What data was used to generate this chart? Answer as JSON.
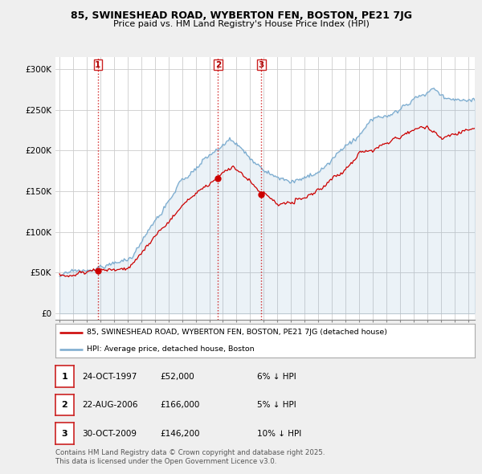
{
  "title_line1": "85, SWINESHEAD ROAD, WYBERTON FEN, BOSTON, PE21 7JG",
  "title_line2": "Price paid vs. HM Land Registry's House Price Index (HPI)",
  "xlim_start": 1994.7,
  "xlim_end": 2025.5,
  "ylim_min": -8000,
  "ylim_max": 315000,
  "yticks": [
    0,
    50000,
    100000,
    150000,
    200000,
    250000,
    300000
  ],
  "ytick_labels": [
    "£0",
    "£50K",
    "£100K",
    "£150K",
    "£200K",
    "£250K",
    "£300K"
  ],
  "sale_dates_decimal": [
    1997.81,
    2006.64,
    2009.83
  ],
  "sale_prices": [
    52000,
    166000,
    146200
  ],
  "sale_labels": [
    "1",
    "2",
    "3"
  ],
  "legend_red_label": "85, SWINESHEAD ROAD, WYBERTON FEN, BOSTON, PE21 7JG (detached house)",
  "legend_blue_label": "HPI: Average price, detached house, Boston",
  "table_rows": [
    [
      "1",
      "24-OCT-1997",
      "£52,000",
      "6% ↓ HPI"
    ],
    [
      "2",
      "22-AUG-2006",
      "£166,000",
      "5% ↓ HPI"
    ],
    [
      "3",
      "30-OCT-2009",
      "£146,200",
      "10% ↓ HPI"
    ]
  ],
  "footer_text": "Contains HM Land Registry data © Crown copyright and database right 2025.\nThis data is licensed under the Open Government Licence v3.0.",
  "bg_color": "#efefef",
  "plot_bg_color": "#ffffff",
  "red_color": "#cc0000",
  "blue_color": "#7aabcf",
  "grid_color": "#cccccc"
}
